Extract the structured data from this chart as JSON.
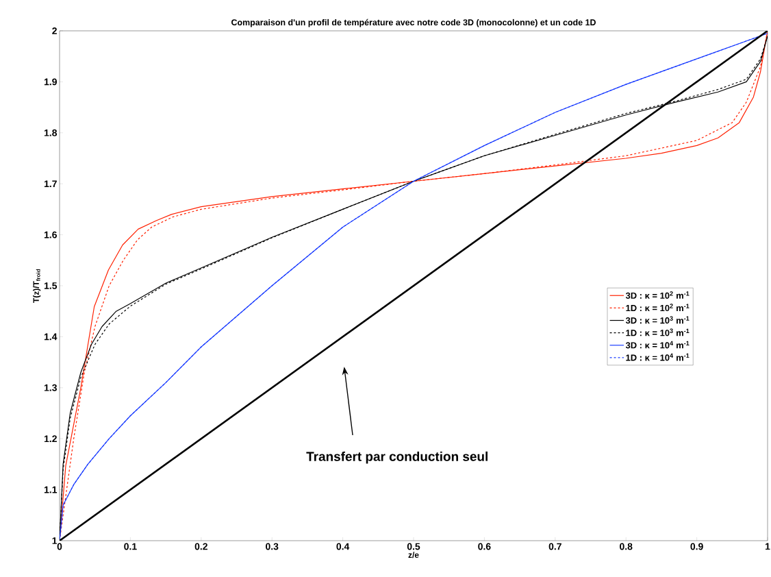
{
  "chart_data": {
    "type": "line",
    "title": "Comparaison d'un profil de température avec notre code 3D (monocolonne) et un code 1D",
    "xlabel": "z/e",
    "ylabel": "T(z)/T$_{froid}$",
    "xlim": [
      0,
      1
    ],
    "ylim": [
      1,
      2
    ],
    "xticks": [
      0,
      0.1,
      0.2,
      0.3,
      0.4,
      0.5,
      0.6,
      0.7,
      0.8,
      0.9,
      1
    ],
    "yticks": [
      1,
      1.1,
      1.2,
      1.3,
      1.4,
      1.5,
      1.6,
      1.7,
      1.8,
      1.9,
      2
    ],
    "grid": false,
    "legend": "right",
    "marker": "none",
    "annotations": [
      "Transfert par conduction seul"
    ],
    "series": [
      {
        "name": "3D : κ = 10$^{2}$ m$^{-1}$",
        "color": "#ff2000",
        "line_style": "solid",
        "x": [
          0,
          0.0087,
          0.03,
          0.049,
          0.069,
          0.089,
          0.111,
          0.137,
          0.158,
          0.2,
          0.3,
          0.4,
          0.5,
          0.6,
          0.7,
          0.8,
          0.85,
          0.9,
          0.93,
          0.96,
          0.98,
          0.99,
          1
        ],
        "values": [
          1,
          1.147,
          1.3,
          1.459,
          1.531,
          1.58,
          1.611,
          1.628,
          1.64,
          1.655,
          1.675,
          1.69,
          1.705,
          1.72,
          1.735,
          1.75,
          1.76,
          1.775,
          1.79,
          1.82,
          1.87,
          1.92,
          2
        ]
      },
      {
        "name": "1D : κ = 10$^{2}$ m$^{-1}$",
        "color": "#ff2000",
        "line_style": "dashed",
        "x": [
          0,
          0.02,
          0.035,
          0.05,
          0.07,
          0.09,
          0.11,
          0.13,
          0.16,
          0.2,
          0.3,
          0.4,
          0.5,
          0.6,
          0.7,
          0.8,
          0.9,
          0.95,
          0.97,
          0.99,
          1
        ],
        "values": [
          1,
          1.2,
          1.33,
          1.42,
          1.5,
          1.55,
          1.59,
          1.615,
          1.635,
          1.65,
          1.672,
          1.688,
          1.705,
          1.72,
          1.737,
          1.755,
          1.785,
          1.82,
          1.86,
          1.93,
          2
        ]
      },
      {
        "name": "3D : κ = 10$^{3}$ m$^{-1}$",
        "color": "#000000",
        "line_style": "solid",
        "x": [
          0,
          0.005,
          0.015,
          0.03,
          0.045,
          0.06,
          0.08,
          0.1,
          0.15,
          0.2,
          0.3,
          0.4,
          0.5,
          0.6,
          0.7,
          0.8,
          0.87,
          0.93,
          0.97,
          0.99,
          1
        ],
        "values": [
          1,
          1.15,
          1.25,
          1.33,
          1.385,
          1.42,
          1.45,
          1.465,
          1.505,
          1.535,
          1.595,
          1.65,
          1.705,
          1.755,
          1.795,
          1.835,
          1.86,
          1.88,
          1.9,
          1.94,
          1.99
        ]
      },
      {
        "name": "1D : κ = 10$^{3}$ m$^{-1}$",
        "color": "#000000",
        "line_style": "dashed",
        "x": [
          0,
          0.005,
          0.015,
          0.03,
          0.05,
          0.07,
          0.1,
          0.15,
          0.2,
          0.3,
          0.4,
          0.5,
          0.6,
          0.7,
          0.8,
          0.87,
          0.93,
          0.97,
          0.99,
          1
        ],
        "values": [
          1,
          1.14,
          1.24,
          1.32,
          1.385,
          1.425,
          1.46,
          1.503,
          1.533,
          1.594,
          1.65,
          1.705,
          1.755,
          1.797,
          1.838,
          1.862,
          1.885,
          1.905,
          1.945,
          1.99
        ]
      },
      {
        "name": "3D : κ = 10$^{4}$ m$^{-1}$",
        "color": "#1a3cff",
        "line_style": "solid",
        "x": [
          0,
          0.005,
          0.02,
          0.04,
          0.07,
          0.1,
          0.15,
          0.2,
          0.3,
          0.4,
          0.5,
          0.6,
          0.7,
          0.8,
          0.9,
          1
        ],
        "values": [
          1,
          1.07,
          1.11,
          1.15,
          1.2,
          1.245,
          1.31,
          1.38,
          1.5,
          1.615,
          1.705,
          1.775,
          1.84,
          1.895,
          1.945,
          1.995
        ]
      },
      {
        "name": "1D : κ = 10$^{4}$ m$^{-1}$",
        "color": "#1a3cff",
        "line_style": "dashed",
        "x": [
          0,
          0.005,
          0.02,
          0.04,
          0.07,
          0.1,
          0.15,
          0.2,
          0.3,
          0.4,
          0.5,
          0.6,
          0.7,
          0.8,
          0.9,
          1
        ],
        "values": [
          1,
          1.07,
          1.11,
          1.15,
          1.2,
          1.245,
          1.31,
          1.38,
          1.5,
          1.615,
          1.705,
          1.775,
          1.84,
          1.895,
          1.945,
          1.995
        ]
      },
      {
        "color": "#000000",
        "line_style": "solid",
        "x": [
          0,
          1
        ],
        "values": [
          1,
          2
        ]
      }
    ]
  }
}
